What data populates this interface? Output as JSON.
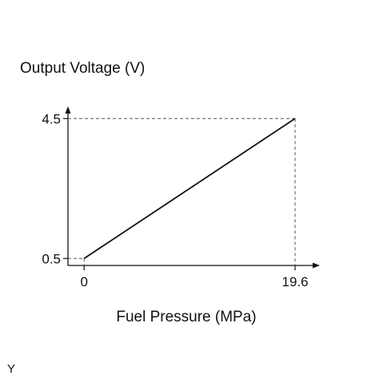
{
  "chart_data": {
    "type": "line",
    "ylabel": "Output Voltage (V)",
    "xlabel": "Fuel Pressure (MPa)",
    "series": [
      {
        "x": [
          0,
          19.6
        ],
        "y": [
          0.5,
          4.5
        ]
      }
    ],
    "x_ticks": [
      "0",
      "19.6"
    ],
    "y_ticks": [
      "0.5",
      "4.5"
    ],
    "xlim": [
      -1.5,
      21.9
    ],
    "ylim": [
      0.3,
      4.85
    ],
    "grid": false,
    "reference_lines": "dashed guides from axes to the line endpoints"
  },
  "corner_mark": "Y"
}
